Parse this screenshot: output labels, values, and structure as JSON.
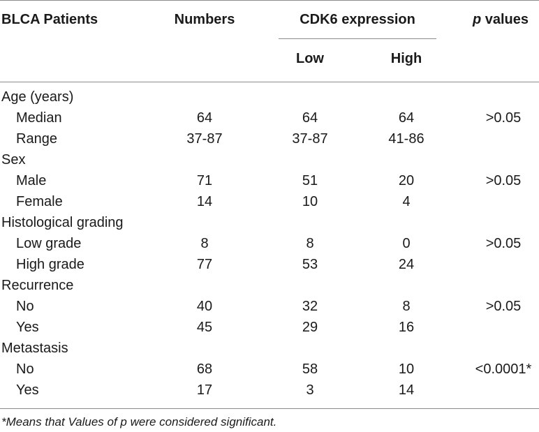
{
  "header": {
    "patients": "BLCA Patients",
    "numbers": "Numbers",
    "cdk6": "CDK6 expression",
    "p_italic": "p",
    "p_rest": " values",
    "low": "Low",
    "high": "High"
  },
  "rows": [
    {
      "label": "Age (years)",
      "numbers": "",
      "low": "",
      "high": "",
      "p": ""
    },
    {
      "label": "Median",
      "numbers": "64",
      "low": "64",
      "high": "64",
      "p": ">0.05"
    },
    {
      "label": "Range",
      "numbers": "37-87",
      "low": "37-87",
      "high": "41-86",
      "p": ""
    },
    {
      "label": "Sex",
      "numbers": "",
      "low": "",
      "high": "",
      "p": ""
    },
    {
      "label": "Male",
      "numbers": "71",
      "low": "51",
      "high": "20",
      "p": ">0.05"
    },
    {
      "label": "Female",
      "numbers": "14",
      "low": "10",
      "high": "4",
      "p": ""
    },
    {
      "label": "Histological grading",
      "numbers": "",
      "low": "",
      "high": "",
      "p": ""
    },
    {
      "label": "Low grade",
      "numbers": "8",
      "low": "8",
      "high": "0",
      "p": ">0.05"
    },
    {
      "label": "High grade",
      "numbers": "77",
      "low": "53",
      "high": "24",
      "p": ""
    },
    {
      "label": "Recurrence",
      "numbers": "",
      "low": "",
      "high": "",
      "p": ""
    },
    {
      "label": "No",
      "numbers": "40",
      "low": "32",
      "high": "8",
      "p": ">0.05"
    },
    {
      "label": "Yes",
      "numbers": "45",
      "low": "29",
      "high": "16",
      "p": ""
    },
    {
      "label": "Metastasis",
      "numbers": "",
      "low": "",
      "high": "",
      "p": ""
    },
    {
      "label": "No",
      "numbers": "68",
      "low": "58",
      "high": "10",
      "p": "<0.0001*"
    },
    {
      "label": "Yes",
      "numbers": "17",
      "low": "3",
      "high": "14",
      "p": ""
    }
  ],
  "footnote": "*Means that Values of p were considered significant."
}
